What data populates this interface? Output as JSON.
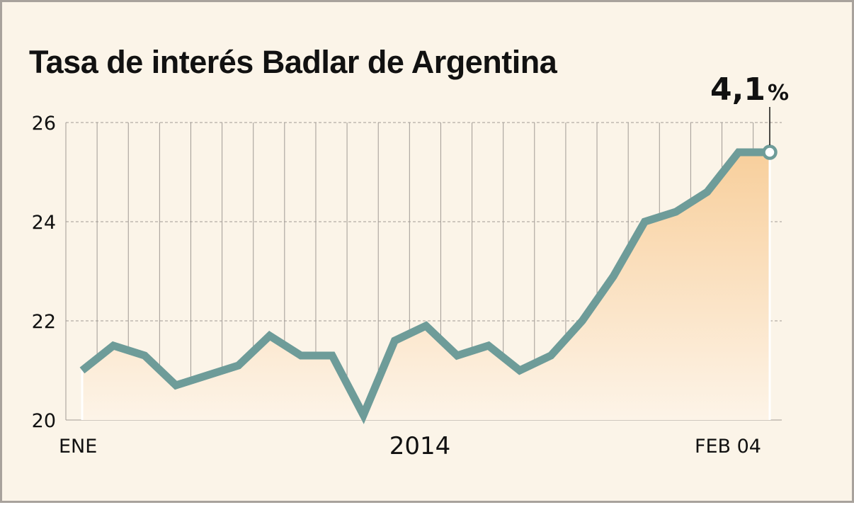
{
  "chart_data": {
    "type": "line",
    "title": "Tasa de interés Badlar de Argentina",
    "xlabel": "",
    "ylabel": "",
    "ylim": [
      20,
      26
    ],
    "y_ticks": [
      20,
      22,
      24,
      26
    ],
    "y_tick_labels": [
      "20",
      "22",
      "24",
      "26"
    ],
    "x_tick_labels": {
      "start": "ENE",
      "middle": "2014",
      "end": "FEB 04"
    },
    "grid": {
      "horizontal": true,
      "vertical": true
    },
    "area_fill": true,
    "values": [
      21.0,
      21.5,
      21.3,
      20.7,
      20.9,
      21.1,
      21.7,
      21.3,
      21.3,
      20.1,
      21.6,
      21.9,
      21.3,
      21.5,
      21.0,
      21.3,
      22.0,
      22.9,
      24.0,
      24.2,
      24.6,
      25.4,
      25.4
    ],
    "annotation": {
      "value": "4,1",
      "unit": "%"
    },
    "colors": {
      "line": "#6e9c99",
      "area_top": "#f8cf9c",
      "area_bottom": "#fdf4e8",
      "grid": "#a09a94",
      "background": "#fbf4e8",
      "border": "#a8a29c"
    }
  }
}
